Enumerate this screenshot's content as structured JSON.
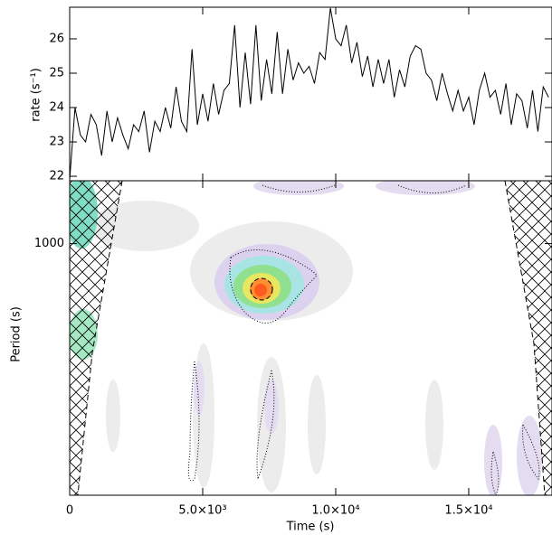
{
  "chart_data": [
    {
      "type": "line",
      "ylabel": "rate (s⁻¹)",
      "color": "#000000",
      "x": [
        0,
        200,
        400,
        600,
        800,
        1000,
        1200,
        1400,
        1600,
        1800,
        2000,
        2200,
        2400,
        2600,
        2800,
        3000,
        3200,
        3400,
        3600,
        3800,
        4000,
        4200,
        4400,
        4600,
        4800,
        5000,
        5200,
        5400,
        5600,
        5800,
        6000,
        6200,
        6400,
        6600,
        6800,
        7000,
        7200,
        7400,
        7600,
        7800,
        8000,
        8200,
        8400,
        8600,
        8800,
        9000,
        9200,
        9400,
        9600,
        9800,
        10000,
        10200,
        10400,
        10600,
        10800,
        11000,
        11200,
        11400,
        11600,
        11800,
        12000,
        12200,
        12400,
        12600,
        12800,
        13000,
        13200,
        13400,
        13600,
        13800,
        14000,
        14200,
        14400,
        14600,
        14800,
        15000,
        15200,
        15400,
        15600,
        15800,
        16000,
        16200,
        16400,
        16600,
        16800,
        17000,
        17200,
        17400,
        17600,
        17800,
        18000
      ],
      "values": [
        21.9,
        24.0,
        23.2,
        23.0,
        23.8,
        23.5,
        22.6,
        23.9,
        23.0,
        23.7,
        23.2,
        22.8,
        23.5,
        23.3,
        23.9,
        22.7,
        23.6,
        23.3,
        24.0,
        23.4,
        24.6,
        23.6,
        23.3,
        25.7,
        23.5,
        24.4,
        23.6,
        24.7,
        23.8,
        24.5,
        24.7,
        26.4,
        24.0,
        25.6,
        24.1,
        26.4,
        24.2,
        25.4,
        24.4,
        26.2,
        24.4,
        25.7,
        24.8,
        25.3,
        25.0,
        25.2,
        24.7,
        25.6,
        25.4,
        26.9,
        26.0,
        25.8,
        26.4,
        25.3,
        25.9,
        24.9,
        25.5,
        24.6,
        25.4,
        24.7,
        25.4,
        24.3,
        25.1,
        24.6,
        25.5,
        25.8,
        25.7,
        25.0,
        24.8,
        24.2,
        25.0,
        24.4,
        23.9,
        24.5,
        23.9,
        24.3,
        23.5,
        24.5,
        25.0,
        24.3,
        24.5,
        23.8,
        24.7,
        23.5,
        24.4,
        24.2,
        23.4,
        24.5,
        23.3,
        24.6,
        24.3
      ],
      "xlim": [
        0,
        18130
      ],
      "ylim": [
        21.87,
        26.92
      ],
      "yticks": [
        22,
        23,
        24,
        25,
        26
      ]
    },
    {
      "type": "heatmap",
      "xlabel": "Time (s)",
      "ylabel": "Period (s)",
      "log_y": true,
      "xlim": [
        0,
        18130
      ],
      "xticks": [
        0,
        {
          "value": 5000,
          "label": "5.0×10³"
        },
        {
          "value": 10000,
          "label": "1.0×10⁴"
        },
        {
          "value": 15000,
          "label": "1.5×10⁴"
        }
      ],
      "ylim": [
        95,
        1800
      ],
      "yticks": [
        1000
      ]
    }
  ]
}
